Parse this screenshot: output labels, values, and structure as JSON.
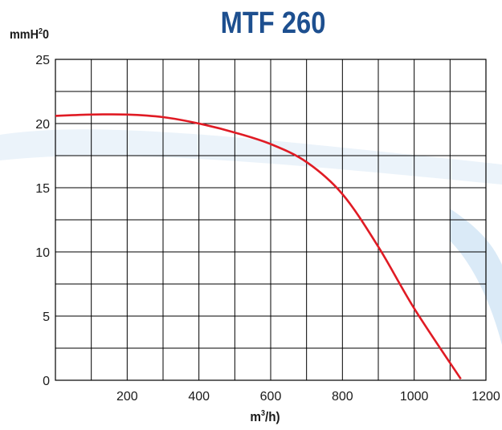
{
  "chart_data": {
    "type": "line",
    "title": "MTF 260",
    "ylabel": "mmH²0",
    "xlabel": "m³/h)",
    "xlim": [
      0,
      1200
    ],
    "ylim": [
      0,
      25
    ],
    "x_ticks": [
      "200",
      "400",
      "600",
      "800",
      "1000",
      "1200"
    ],
    "y_ticks": [
      "0",
      "5",
      "10",
      "15",
      "20",
      "25"
    ],
    "grid": true,
    "series": [
      {
        "color": "#e01b24",
        "x": [
          0,
          100,
          200,
          300,
          400,
          500,
          600,
          700,
          800,
          900,
          1000,
          1130
        ],
        "y": [
          20.6,
          20.7,
          20.7,
          20.5,
          20.0,
          19.3,
          18.4,
          17.0,
          14.5,
          10.4,
          5.6,
          0.1
        ]
      }
    ]
  },
  "colors": {
    "title": "#1d4f8f",
    "curve": "#e01b24",
    "grid": "#000000"
  }
}
